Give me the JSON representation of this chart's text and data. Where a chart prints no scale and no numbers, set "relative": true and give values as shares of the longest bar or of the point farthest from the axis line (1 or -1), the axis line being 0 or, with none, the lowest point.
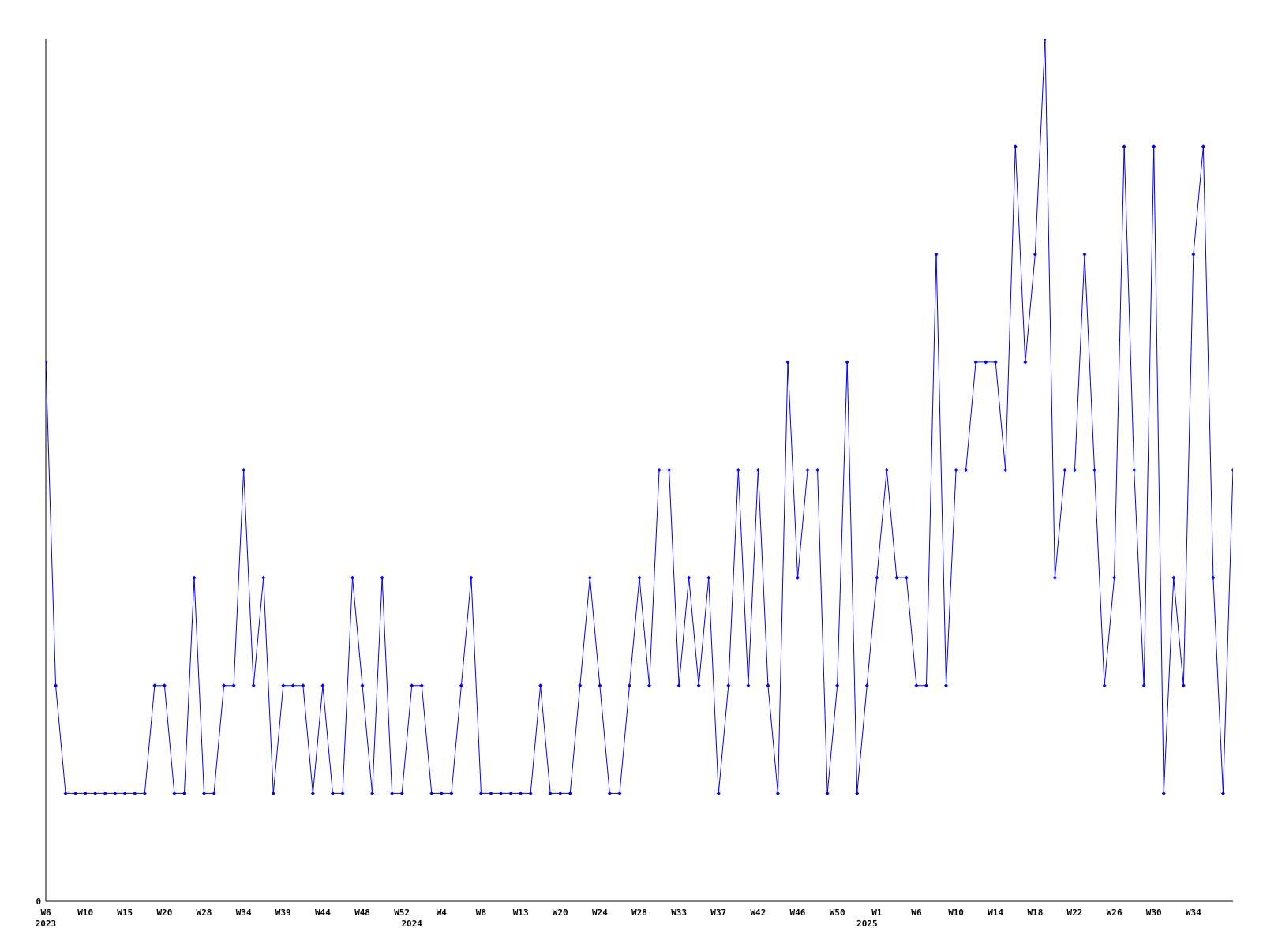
{
  "chart_data": {
    "type": "line",
    "relative": true,
    "annotations": [
      "0"
    ],
    "grid": false,
    "legend": false,
    "marker": "diamond",
    "line_style": "solid",
    "categories": [
      "W6\n2023",
      null,
      null,
      null,
      "W10",
      null,
      null,
      null,
      "W15",
      null,
      null,
      null,
      "W20",
      null,
      null,
      null,
      "W28",
      null,
      null,
      null,
      "W34",
      null,
      null,
      null,
      "W39",
      null,
      null,
      null,
      "W44",
      null,
      null,
      null,
      "W48",
      null,
      null,
      null,
      "W52",
      "\n2024",
      null,
      null,
      "W4",
      null,
      null,
      null,
      "W8",
      null,
      null,
      null,
      "W13",
      null,
      null,
      null,
      "W20",
      null,
      null,
      null,
      "W24",
      null,
      null,
      null,
      "W28",
      null,
      null,
      null,
      "W33",
      null,
      null,
      null,
      "W37",
      null,
      null,
      null,
      "W42",
      null,
      null,
      null,
      "W46",
      null,
      null,
      null,
      "W50",
      null,
      null,
      "\n2025",
      "W1",
      null,
      null,
      null,
      "W6",
      null,
      null,
      null,
      "W10",
      null,
      null,
      null,
      "W14",
      null,
      null,
      null,
      "W18",
      null,
      null,
      null,
      "W22",
      null,
      null,
      null,
      "W26",
      null,
      null,
      null,
      "W30",
      null,
      null,
      null,
      "W34",
      null,
      null,
      null,
      null
    ],
    "series": [
      {
        "color": "#0000ff",
        "values": [
          0.625,
          0.25,
          0.125,
          0.125,
          0.125,
          0.125,
          0.125,
          0.125,
          0.125,
          0.125,
          0.125,
          0.25,
          0.25,
          0.125,
          0.125,
          0.375,
          0.125,
          0.125,
          0.25,
          0.25,
          0.5,
          0.25,
          0.375,
          0.125,
          0.25,
          0.25,
          0.25,
          0.125,
          0.25,
          0.125,
          0.125,
          0.375,
          0.25,
          0.125,
          0.375,
          0.125,
          0.125,
          0.25,
          0.25,
          0.125,
          0.125,
          0.125,
          0.25,
          0.375,
          0.125,
          0.125,
          0.125,
          0.125,
          0.125,
          0.125,
          0.25,
          0.125,
          0.125,
          0.125,
          0.25,
          0.375,
          0.25,
          0.125,
          0.125,
          0.25,
          0.375,
          0.25,
          0.5,
          0.5,
          0.25,
          0.375,
          0.25,
          0.375,
          0.125,
          0.25,
          0.5,
          0.25,
          0.5,
          0.25,
          0.125,
          0.625,
          0.375,
          0.5,
          0.5,
          0.125,
          0.25,
          0.625,
          0.125,
          0.25,
          0.375,
          0.5,
          0.375,
          0.375,
          0.25,
          0.25,
          0.75,
          0.25,
          0.5,
          0.5,
          0.625,
          0.625,
          0.625,
          0.5,
          0.875,
          0.625,
          0.75,
          1,
          0.375,
          0.5,
          0.5,
          0.75,
          0.5,
          0.25,
          0.375,
          0.875,
          0.5,
          0.25,
          0.875,
          0.125,
          0.375,
          0.25,
          0.75,
          0.875,
          0.375,
          0.125,
          0.5
        ]
      }
    ]
  }
}
